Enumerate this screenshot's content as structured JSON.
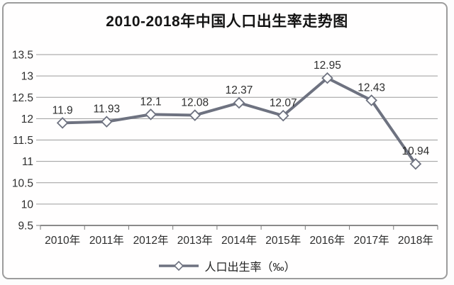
{
  "chart_data": {
    "type": "line",
    "title": "2010-2018年中国人口出生率走势图",
    "categories": [
      "2010年",
      "2011年",
      "2012年",
      "2013年",
      "2014年",
      "2015年",
      "2016年",
      "2017年",
      "2018年"
    ],
    "series": [
      {
        "name": "人口出生率（‰）",
        "values": [
          11.9,
          11.93,
          12.1,
          12.08,
          12.37,
          12.07,
          12.95,
          12.43,
          10.94
        ]
      }
    ],
    "data_labels": [
      "11.9",
      "11.93",
      "12.1",
      "12.08",
      "12.37",
      "12.07",
      "12.95",
      "12.43",
      "10.94"
    ],
    "ylim": [
      9.5,
      13.5
    ],
    "ytick_labels": [
      "13.5",
      "13",
      "12.5",
      "12",
      "11.5",
      "11",
      "10.5",
      "10",
      "9.5"
    ],
    "xlabel": "",
    "ylabel": "",
    "grid": "horizontal",
    "legend_position": "bottom",
    "colors": {
      "line": "#6e7280",
      "marker_fill": "#ffffff",
      "grid": "#9b9b9b",
      "axis": "#7a7a7a",
      "text": "#2e2e2e",
      "title": "#141414",
      "background": "#fffefe",
      "border": "#9c9c9c"
    }
  }
}
